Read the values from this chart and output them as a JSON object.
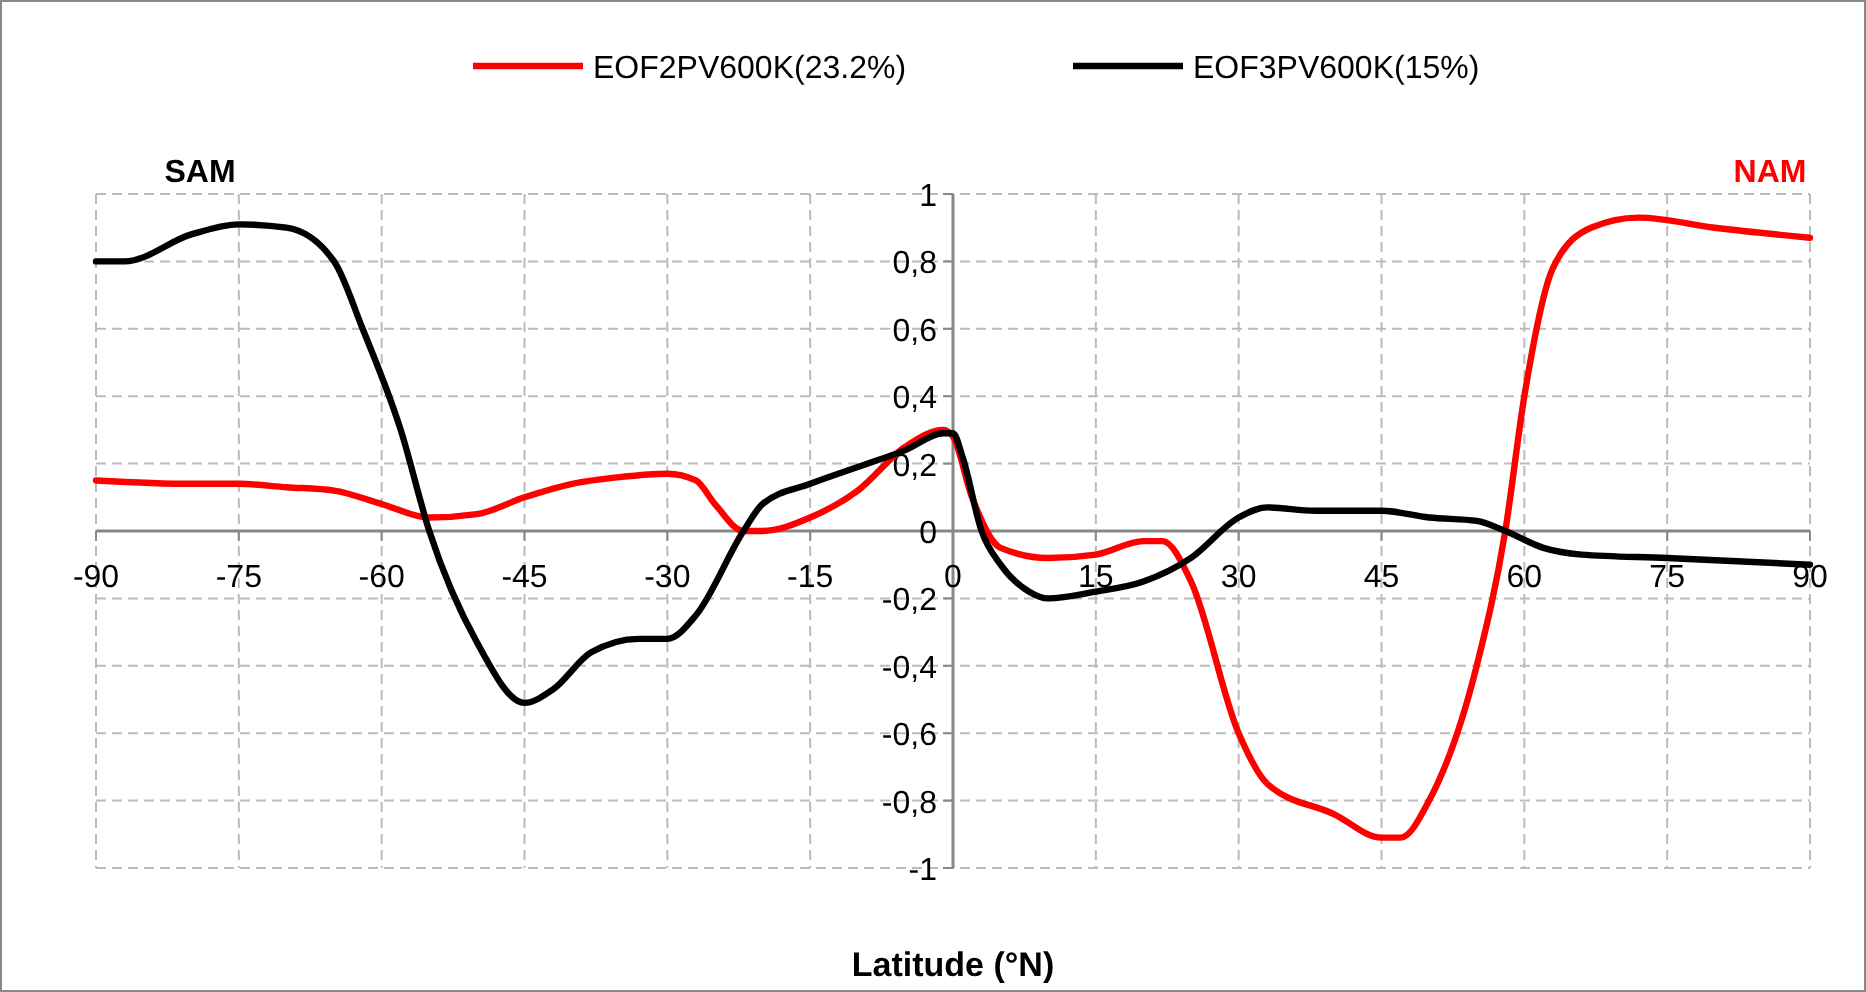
{
  "chart_data": {
    "type": "line",
    "xlabel": "Latitude (°N)",
    "xlim": [
      -90,
      90
    ],
    "xticks": [
      -90,
      -75,
      -60,
      -45,
      -30,
      -15,
      0,
      15,
      30,
      45,
      60,
      75,
      90
    ],
    "ylim": [
      -1,
      1
    ],
    "yticks": [
      {
        "value": -1,
        "label": "-1"
      },
      {
        "value": -0.8,
        "label": "-0,8"
      },
      {
        "value": -0.6,
        "label": "-0,6"
      },
      {
        "value": -0.4,
        "label": "-0,4"
      },
      {
        "value": -0.2,
        "label": "-0,2"
      },
      {
        "value": 0,
        "label": "0"
      },
      {
        "value": 0.2,
        "label": "0,2"
      },
      {
        "value": 0.4,
        "label": "0,4"
      },
      {
        "value": 0.6,
        "label": "0,6"
      },
      {
        "value": 0.8,
        "label": "0,8"
      },
      {
        "value": 1,
        "label": "1"
      }
    ],
    "grid": true,
    "legend": "top",
    "line_style": "solid",
    "marker": "none",
    "series": [
      {
        "name": "EOF2PV600K(23.2%)",
        "color": "#ff0000",
        "x": [
          -90,
          -80,
          -75,
          -70,
          -65,
          -60,
          -55,
          -50,
          -45,
          -40,
          -35,
          -30,
          -27,
          -25,
          -22,
          -20,
          -15,
          -10,
          -5,
          -1,
          0,
          2,
          5,
          10,
          15,
          20,
          22,
          25,
          30,
          33,
          40,
          45,
          47,
          50,
          55,
          58,
          60,
          63,
          67,
          72,
          80,
          90
        ],
        "values": [
          0.15,
          0.14,
          0.14,
          0.13,
          0.12,
          0.08,
          0.04,
          0.05,
          0.1,
          0.14,
          0.16,
          0.17,
          0.15,
          0.08,
          0.0,
          0.0,
          0.04,
          0.12,
          0.25,
          0.3,
          0.28,
          0.1,
          -0.05,
          -0.08,
          -0.07,
          -0.03,
          -0.03,
          -0.15,
          -0.6,
          -0.75,
          -0.84,
          -0.91,
          -0.91,
          -0.8,
          -0.4,
          0.0,
          0.4,
          0.78,
          0.9,
          0.93,
          0.9,
          0.87
        ]
      },
      {
        "name": "EOF3PV600K(15%)",
        "color": "#000000",
        "x": [
          -90,
          -87,
          -80,
          -75,
          -70,
          -65,
          -62,
          -58,
          -55,
          -50,
          -45,
          -42,
          -38,
          -33,
          -30,
          -27,
          -22,
          -20,
          -15,
          -10,
          -5,
          -1,
          0,
          1,
          3,
          5,
          8,
          10,
          15,
          20,
          25,
          30,
          33,
          38,
          45,
          50,
          55,
          58,
          62,
          66,
          75,
          90
        ],
        "values": [
          0.8,
          0.8,
          0.88,
          0.91,
          0.9,
          0.8,
          0.6,
          0.3,
          0.0,
          -0.33,
          -0.51,
          -0.47,
          -0.36,
          -0.32,
          -0.32,
          -0.25,
          0.0,
          0.08,
          0.14,
          0.19,
          0.24,
          0.29,
          0.29,
          0.22,
          0.0,
          -0.1,
          -0.18,
          -0.2,
          -0.18,
          -0.15,
          -0.08,
          0.04,
          0.07,
          0.06,
          0.06,
          0.04,
          0.03,
          0.0,
          -0.05,
          -0.07,
          -0.08,
          -0.1
        ]
      }
    ],
    "annotations": [
      "SAM",
      "NAM"
    ]
  }
}
